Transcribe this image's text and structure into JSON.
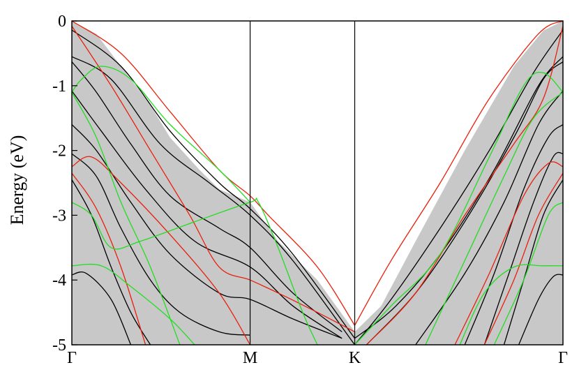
{
  "chart_data": {
    "type": "line",
    "title": "",
    "ylabel": "Energy (eV)",
    "xlabel": "",
    "ylim": [
      -5,
      0
    ],
    "xlim": [
      0,
      1
    ],
    "x_ticks": [
      {
        "x": 0.0,
        "label": "Γ"
      },
      {
        "x": 0.363,
        "label": "M"
      },
      {
        "x": 0.576,
        "label": "K"
      },
      {
        "x": 1.0,
        "label": "Γ"
      }
    ],
    "y_ticks": [
      {
        "y": 0,
        "label": "0"
      },
      {
        "y": -1,
        "label": "-1"
      },
      {
        "y": -2,
        "label": "-2"
      },
      {
        "y": -3,
        "label": "-3"
      },
      {
        "y": -4,
        "label": "-4"
      },
      {
        "y": -5,
        "label": "-5"
      }
    ],
    "colors": {
      "projected_band": "#c8c8c8",
      "black_bands": "#000000",
      "red_bands": "#e8200c",
      "green_bands": "#22dd22"
    },
    "shaded_region": {
      "upper": [
        [
          0.0,
          0.0
        ],
        [
          0.05,
          -0.2
        ],
        [
          0.1,
          -0.7
        ],
        [
          0.16,
          -1.3
        ],
        [
          0.2,
          -1.8
        ],
        [
          0.26,
          -2.3
        ],
        [
          0.3,
          -2.6
        ],
        [
          0.363,
          -2.8
        ],
        [
          0.42,
          -3.4
        ],
        [
          0.5,
          -4.0
        ],
        [
          0.576,
          -4.8
        ],
        [
          0.63,
          -4.4
        ],
        [
          0.7,
          -3.4
        ],
        [
          0.8,
          -2.0
        ],
        [
          0.9,
          -0.7
        ],
        [
          0.96,
          -0.15
        ],
        [
          1.0,
          0.0
        ]
      ],
      "lower": [
        [
          0.0,
          -5.0
        ],
        [
          1.0,
          -5.0
        ]
      ]
    },
    "series": [
      {
        "color": "black",
        "points": [
          [
            0.0,
            -0.14
          ],
          [
            0.1,
            -0.7
          ],
          [
            0.2,
            -1.7
          ],
          [
            0.3,
            -2.5
          ],
          [
            0.363,
            -2.9
          ],
          [
            0.45,
            -3.6
          ],
          [
            0.576,
            -4.9
          ]
        ]
      },
      {
        "color": "black",
        "points": [
          [
            0.0,
            -0.55
          ],
          [
            0.08,
            -0.9
          ],
          [
            0.18,
            -1.9
          ],
          [
            0.28,
            -2.5
          ],
          [
            0.363,
            -3.0
          ],
          [
            0.45,
            -3.7
          ],
          [
            0.576,
            -5.0
          ]
        ]
      },
      {
        "color": "black",
        "points": [
          [
            0.0,
            -0.63
          ],
          [
            0.05,
            -1.1
          ],
          [
            0.12,
            -1.9
          ],
          [
            0.2,
            -2.7
          ],
          [
            0.3,
            -3.2
          ],
          [
            0.363,
            -3.5
          ],
          [
            0.45,
            -4.2
          ],
          [
            0.55,
            -4.8
          ]
        ]
      },
      {
        "color": "black",
        "points": [
          [
            0.0,
            -1.08
          ],
          [
            0.06,
            -1.7
          ],
          [
            0.15,
            -2.6
          ],
          [
            0.25,
            -3.4
          ],
          [
            0.363,
            -3.8
          ],
          [
            0.45,
            -4.4
          ],
          [
            0.55,
            -4.9
          ]
        ]
      },
      {
        "color": "black",
        "points": [
          [
            0.0,
            -1.6
          ],
          [
            0.05,
            -2.0
          ],
          [
            0.12,
            -2.8
          ],
          [
            0.2,
            -3.6
          ],
          [
            0.3,
            -4.2
          ],
          [
            0.363,
            -4.3
          ],
          [
            0.45,
            -4.6
          ],
          [
            0.55,
            -4.9
          ]
        ]
      },
      {
        "color": "black",
        "points": [
          [
            0.0,
            -2.05
          ],
          [
            0.05,
            -2.4
          ],
          [
            0.1,
            -3.2
          ],
          [
            0.16,
            -4.0
          ],
          [
            0.22,
            -4.5
          ],
          [
            0.3,
            -4.8
          ],
          [
            0.363,
            -4.85
          ]
        ]
      },
      {
        "color": "black",
        "points": [
          [
            0.0,
            -2.45
          ],
          [
            0.04,
            -3.0
          ],
          [
            0.08,
            -3.8
          ],
          [
            0.12,
            -4.5
          ],
          [
            0.16,
            -5.0
          ]
        ]
      },
      {
        "color": "black",
        "points": [
          [
            0.0,
            -3.92
          ],
          [
            0.03,
            -3.9
          ],
          [
            0.08,
            -4.3
          ],
          [
            0.12,
            -5.0
          ]
        ]
      },
      {
        "color": "black",
        "points": [
          [
            0.576,
            -5.0
          ],
          [
            0.65,
            -4.3
          ],
          [
            0.75,
            -3.2
          ],
          [
            0.85,
            -2.0
          ],
          [
            0.94,
            -0.8
          ],
          [
            1.0,
            -0.14
          ]
        ]
      },
      {
        "color": "black",
        "points": [
          [
            0.576,
            -4.9
          ],
          [
            0.66,
            -4.4
          ],
          [
            0.76,
            -3.5
          ],
          [
            0.86,
            -2.3
          ],
          [
            0.95,
            -1.0
          ],
          [
            1.0,
            -0.55
          ]
        ]
      },
      {
        "color": "black",
        "points": [
          [
            0.6,
            -5.0
          ],
          [
            0.7,
            -4.2
          ],
          [
            0.8,
            -3.1
          ],
          [
            0.9,
            -1.8
          ],
          [
            0.96,
            -0.9
          ],
          [
            1.0,
            -0.63
          ]
        ]
      },
      {
        "color": "black",
        "points": [
          [
            0.7,
            -5.0
          ],
          [
            0.8,
            -3.9
          ],
          [
            0.88,
            -2.8
          ],
          [
            0.95,
            -1.6
          ],
          [
            1.0,
            -1.08
          ]
        ]
      },
      {
        "color": "black",
        "points": [
          [
            0.8,
            -5.0
          ],
          [
            0.86,
            -3.9
          ],
          [
            0.92,
            -2.6
          ],
          [
            0.97,
            -1.8
          ],
          [
            1.0,
            -1.6
          ]
        ]
      },
      {
        "color": "black",
        "points": [
          [
            0.84,
            -5.0
          ],
          [
            0.89,
            -3.9
          ],
          [
            0.94,
            -2.8
          ],
          [
            0.98,
            -2.1
          ],
          [
            1.0,
            -2.05
          ]
        ]
      },
      {
        "color": "black",
        "points": [
          [
            0.88,
            -5.0
          ],
          [
            0.92,
            -4.0
          ],
          [
            0.96,
            -3.0
          ],
          [
            1.0,
            -2.45
          ]
        ]
      },
      {
        "color": "black",
        "points": [
          [
            0.91,
            -5.0
          ],
          [
            0.95,
            -4.3
          ],
          [
            0.98,
            -3.95
          ],
          [
            1.0,
            -3.92
          ]
        ]
      },
      {
        "color": "red",
        "points": [
          [
            0.0,
            0.0
          ],
          [
            0.1,
            -0.5
          ],
          [
            0.2,
            -1.4
          ],
          [
            0.3,
            -2.3
          ],
          [
            0.363,
            -2.7
          ],
          [
            0.4,
            -3.0
          ],
          [
            0.5,
            -3.8
          ],
          [
            0.576,
            -4.7
          ]
        ]
      },
      {
        "color": "red",
        "points": [
          [
            0.0,
            -0.08
          ],
          [
            0.08,
            -1.0
          ],
          [
            0.16,
            -2.0
          ],
          [
            0.24,
            -3.0
          ],
          [
            0.3,
            -3.8
          ],
          [
            0.363,
            -4.0
          ],
          [
            0.42,
            -4.2
          ],
          [
            0.5,
            -4.5
          ],
          [
            0.576,
            -4.8
          ]
        ]
      },
      {
        "color": "red",
        "points": [
          [
            0.0,
            -2.25
          ],
          [
            0.04,
            -2.1
          ],
          [
            0.1,
            -2.5
          ],
          [
            0.2,
            -3.3
          ],
          [
            0.3,
            -4.2
          ],
          [
            0.363,
            -5.0
          ]
        ]
      },
      {
        "color": "red",
        "points": [
          [
            0.0,
            -2.35
          ],
          [
            0.05,
            -2.9
          ],
          [
            0.1,
            -3.8
          ],
          [
            0.15,
            -5.0
          ]
        ]
      },
      {
        "color": "red",
        "points": [
          [
            0.576,
            -4.7
          ],
          [
            0.65,
            -3.7
          ],
          [
            0.75,
            -2.5
          ],
          [
            0.85,
            -1.2
          ],
          [
            0.95,
            -0.2
          ],
          [
            1.0,
            0.0
          ]
        ]
      },
      {
        "color": "red",
        "points": [
          [
            0.6,
            -5.0
          ],
          [
            0.7,
            -4.2
          ],
          [
            0.8,
            -3.0
          ],
          [
            0.9,
            -1.9
          ],
          [
            0.96,
            -1.2
          ],
          [
            1.0,
            -0.08
          ]
        ]
      },
      {
        "color": "red",
        "points": [
          [
            0.78,
            -5.0
          ],
          [
            0.85,
            -3.9
          ],
          [
            0.92,
            -2.7
          ],
          [
            0.97,
            -2.2
          ],
          [
            1.0,
            -2.25
          ]
        ]
      },
      {
        "color": "red",
        "points": [
          [
            0.84,
            -5.0
          ],
          [
            0.9,
            -4.0
          ],
          [
            0.95,
            -3.0
          ],
          [
            1.0,
            -2.35
          ]
        ]
      },
      {
        "color": "green",
        "points": [
          [
            0.0,
            -1.1
          ],
          [
            0.02,
            -0.9
          ],
          [
            0.06,
            -0.7
          ],
          [
            0.12,
            -0.9
          ],
          [
            0.2,
            -1.6
          ],
          [
            0.3,
            -2.3
          ],
          [
            0.363,
            -2.8
          ]
        ]
      },
      {
        "color": "green",
        "points": [
          [
            0.0,
            -1.1
          ],
          [
            0.05,
            -1.8
          ],
          [
            0.1,
            -2.8
          ],
          [
            0.16,
            -3.8
          ],
          [
            0.22,
            -5.0
          ]
        ]
      },
      {
        "color": "green",
        "points": [
          [
            0.0,
            -2.8
          ],
          [
            0.04,
            -3.0
          ],
          [
            0.08,
            -3.5
          ],
          [
            0.14,
            -3.4
          ],
          [
            0.25,
            -3.1
          ],
          [
            0.363,
            -2.8
          ],
          [
            0.38,
            -2.8
          ],
          [
            0.42,
            -3.5
          ],
          [
            0.47,
            -4.5
          ],
          [
            0.5,
            -5.0
          ]
        ]
      },
      {
        "color": "green",
        "points": [
          [
            0.0,
            -3.78
          ],
          [
            0.06,
            -3.78
          ],
          [
            0.12,
            -4.1
          ],
          [
            0.2,
            -4.6
          ],
          [
            0.25,
            -5.0
          ]
        ]
      },
      {
        "color": "green",
        "points": [
          [
            0.576,
            -5.0
          ],
          [
            0.65,
            -4.4
          ],
          [
            0.75,
            -3.6
          ],
          [
            0.85,
            -2.1
          ],
          [
            0.92,
            -1.0
          ],
          [
            0.96,
            -0.8
          ],
          [
            1.0,
            -1.1
          ]
        ]
      },
      {
        "color": "green",
        "points": [
          [
            0.72,
            -5.0
          ],
          [
            0.8,
            -3.7
          ],
          [
            0.88,
            -2.4
          ],
          [
            0.94,
            -1.5
          ],
          [
            1.0,
            -1.1
          ]
        ]
      },
      {
        "color": "green",
        "points": [
          [
            0.86,
            -5.0
          ],
          [
            0.92,
            -4.0
          ],
          [
            0.97,
            -3.0
          ],
          [
            1.0,
            -2.8
          ]
        ]
      },
      {
        "color": "green",
        "points": [
          [
            0.79,
            -5.0
          ],
          [
            0.84,
            -4.2
          ],
          [
            0.9,
            -3.8
          ],
          [
            0.96,
            -3.78
          ],
          [
            1.0,
            -3.78
          ]
        ]
      }
    ]
  }
}
